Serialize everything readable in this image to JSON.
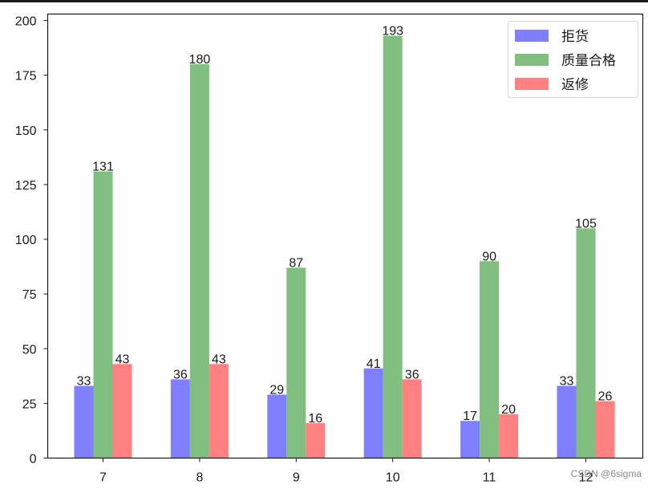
{
  "chart_data": {
    "type": "bar",
    "title": "",
    "xlabel": "",
    "ylabel": "",
    "categories": [
      "7",
      "8",
      "9",
      "10",
      "11",
      "12"
    ],
    "series": [
      {
        "name": "拒货",
        "color": "#8080ff",
        "values": [
          33,
          36,
          29,
          41,
          17,
          33
        ]
      },
      {
        "name": "质量合格",
        "color": "#80bf80",
        "values": [
          131,
          180,
          87,
          193,
          90,
          105
        ]
      },
      {
        "name": "返修",
        "color": "#ff8080",
        "values": [
          43,
          43,
          16,
          36,
          20,
          26
        ]
      }
    ],
    "ylim": [
      0,
      203
    ],
    "yticks": [
      0,
      25,
      50,
      75,
      100,
      125,
      150,
      175,
      200
    ],
    "grid": false,
    "legend_position": "upper right",
    "bar_labels": true
  },
  "watermark": "CSDN @6sigma"
}
